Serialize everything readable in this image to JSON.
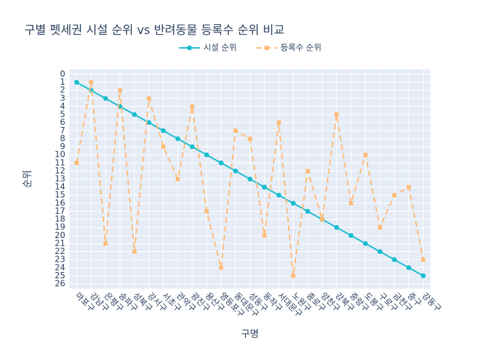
{
  "chart_data": {
    "type": "line",
    "title": "구별 펫세권 시설 순위 vs 반려동물 등록수 순위 비교",
    "xlabel": "구명",
    "ylabel": "순위",
    "categories": [
      "마포구",
      "강남구",
      "은평구",
      "송파구",
      "성북구",
      "강서구",
      "서초구",
      "관악구",
      "광진구",
      "용산구",
      "영등포구",
      "동대문구",
      "성동구",
      "동작구",
      "서대문구",
      "노원구",
      "종로구",
      "양천구",
      "강북구",
      "중랑구",
      "도봉구",
      "구로구",
      "금천구",
      "중구",
      "강동구"
    ],
    "series": [
      {
        "name": "시설 순위",
        "color": "#17becf",
        "dash": false,
        "values": [
          1,
          2,
          3,
          4,
          5,
          6,
          7,
          8,
          9,
          10,
          11,
          12,
          13,
          14,
          15,
          16,
          17,
          18,
          19,
          20,
          21,
          22,
          23,
          24,
          25
        ]
      },
      {
        "name": "등록수 순위",
        "color": "#ffbb78",
        "dash": true,
        "values": [
          11,
          1,
          21,
          2,
          22,
          3,
          9,
          13,
          4,
          17,
          24,
          7,
          8,
          20,
          6,
          25,
          12,
          18,
          5,
          16,
          10,
          19,
          15,
          14,
          23
        ]
      }
    ],
    "ylim": [
      -0.6,
      26.6
    ],
    "yreversed": true,
    "yticks": [
      0,
      1,
      2,
      3,
      4,
      5,
      6,
      7,
      8,
      9,
      10,
      11,
      12,
      13,
      14,
      15,
      16,
      17,
      18,
      19,
      20,
      21,
      22,
      23,
      24,
      25,
      26
    ],
    "grid": true,
    "legend": "top"
  }
}
